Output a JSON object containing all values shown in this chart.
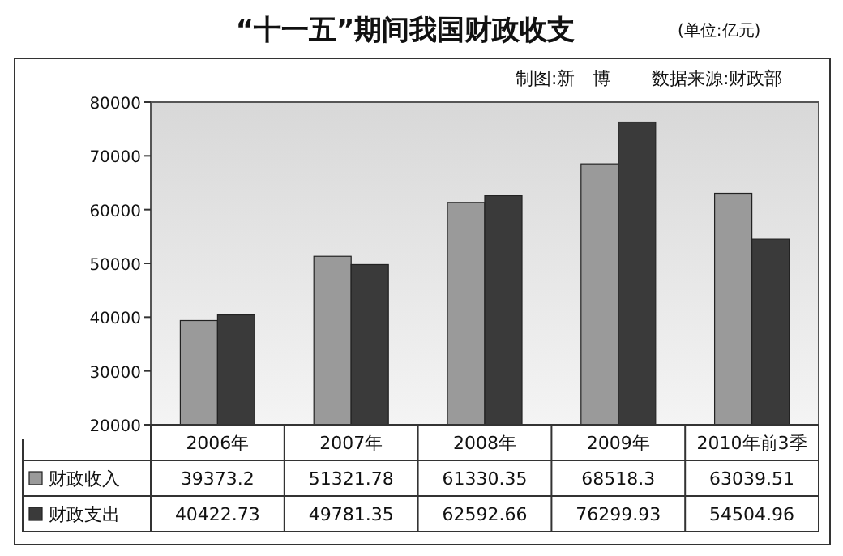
{
  "chart_data": {
    "type": "bar",
    "title": "“十一五”期间我国财政收支",
    "annotations": [
      "(单位:亿元)",
      "制图:新　博",
      "数据来源:财政部"
    ],
    "categories": [
      "2006年",
      "2007年",
      "2008年",
      "2009年",
      "2010年前3季"
    ],
    "series": [
      {
        "name": "财政收入",
        "color": "#9a9a9a",
        "values": [
          39373.2,
          51321.78,
          61330.35,
          68518.3,
          63039.51
        ]
      },
      {
        "name": "财政支出",
        "color": "#3a3a3a",
        "values": [
          40422.73,
          49781.35,
          62592.66,
          76299.93,
          54504.96
        ]
      }
    ],
    "ylim": [
      20000,
      80000
    ],
    "yticks": [
      20000,
      30000,
      40000,
      50000,
      60000,
      70000,
      80000
    ],
    "data_labels": true,
    "legend": "bottom left"
  }
}
